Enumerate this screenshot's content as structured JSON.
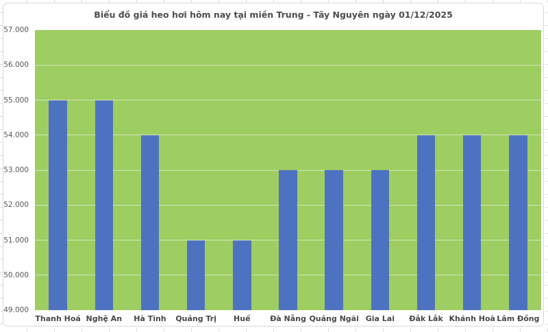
{
  "window": {
    "app": "spreadsheet-chart-view",
    "background_color": "#ffffff",
    "sheet_grid_color": "#dcdcdc",
    "chart_frame_border_color": "#d9d9d9"
  },
  "chart_data": {
    "type": "bar",
    "title": "Biểu đồ giá heo hơi hôm nay tại miền Trung - Tây Nguyên ngày 01/12/2025",
    "categories": [
      "Thanh Hoá",
      "Nghệ An",
      "Hà Tĩnh",
      "Quảng Trị",
      "Huế",
      "Đà Nẵng",
      "Quảng Ngãi",
      "Gia Lai",
      "Đắk Lắk",
      "Khánh Hoà",
      "Lâm Đồng"
    ],
    "values": [
      55000,
      55000,
      54000,
      51000,
      51000,
      53000,
      53000,
      53000,
      54000,
      54000,
      54000
    ],
    "xlabel": "",
    "ylabel": "",
    "ylim": [
      49000,
      57000
    ],
    "ytick_step": 1000,
    "ytick_labels": [
      "49.000",
      "50.000",
      "51.000",
      "52.000",
      "53.000",
      "54.000",
      "55.000",
      "56.000",
      "57.000"
    ],
    "grid": true,
    "legend": false,
    "colors": {
      "bar_fill": "#4d73c0",
      "plot_background": "#9ecd62",
      "gridline": "rgba(255,255,255,0.55)",
      "title_text": "#4d4d4d",
      "ytick_text": "#595959",
      "xtick_text": "#474747"
    }
  }
}
